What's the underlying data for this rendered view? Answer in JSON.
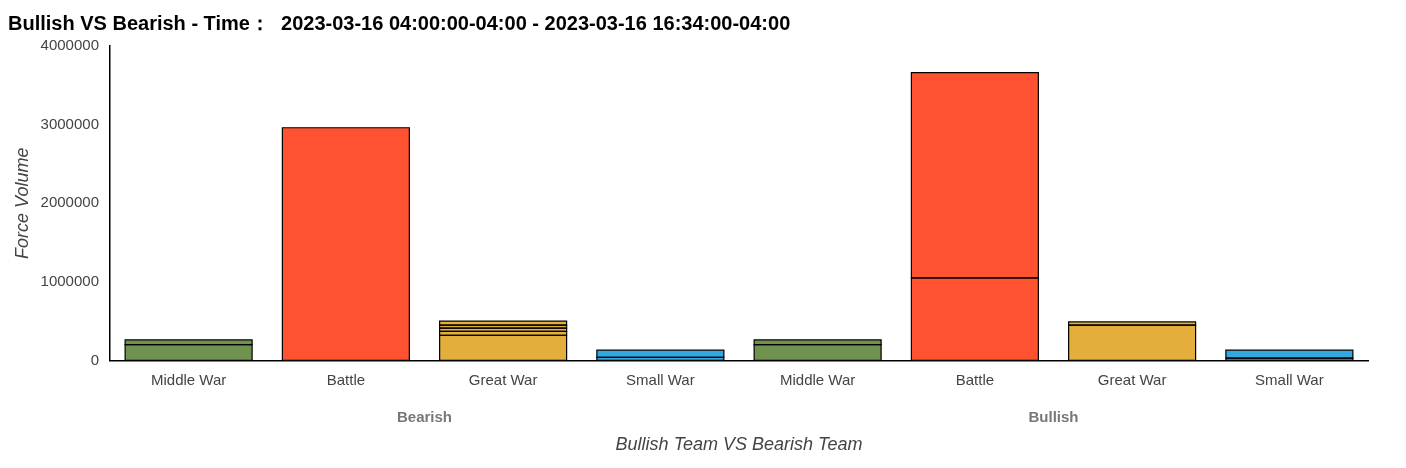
{
  "chart_data": {
    "type": "bar",
    "stacked": true,
    "title": "Bullish VS Bearish - Time：  2023-03-16 04:00:00-04:00 - 2023-03-16 16:34:00-04:00",
    "xlabel": "Bullish Team VS Bearish Team",
    "ylabel": "Force Volume",
    "categories": [
      "Middle War",
      "Battle",
      "Great War",
      "Small War",
      "Middle War",
      "Battle",
      "Great War",
      "Small War"
    ],
    "annotations": [
      "Bearish",
      "Bullish"
    ],
    "series": [
      {
        "colors": [
          "#6f934f",
          "#fe5230",
          "#e3ae3b",
          "#31a8e0",
          "#6f934f",
          "#fe5230",
          "#e3ae3b",
          "#31a8e0"
        ],
        "values": [
          200000,
          2960000,
          320000,
          40000,
          200000,
          1050000,
          450000,
          30000
        ]
      },
      {
        "colors": [
          "#6f934f",
          "#fe5230",
          "#e3ae3b",
          "#31a8e0",
          "#6f934f",
          "#fe5230",
          "#e3ae3b",
          "#31a8e0"
        ],
        "values": [
          60000,
          null,
          50000,
          90000,
          60000,
          2610000,
          40000,
          100000
        ]
      },
      {
        "colors": [
          "#6f934f",
          "#fe5230",
          "#e3ae3b",
          "#31a8e0",
          "#6f934f",
          "#fe5230",
          "#e3ae3b",
          "#31a8e0"
        ],
        "values": [
          null,
          null,
          40000,
          null,
          null,
          null,
          null,
          null
        ]
      },
      {
        "colors": [
          "#6f934f",
          "#fe5230",
          "#e3ae3b",
          "#31a8e0",
          "#6f934f",
          "#fe5230",
          "#e3ae3b",
          "#31a8e0"
        ],
        "values": [
          null,
          null,
          40000,
          null,
          null,
          null,
          null,
          null
        ]
      },
      {
        "colors": [
          "#6f934f",
          "#fe5230",
          "#e3ae3b",
          "#31a8e0",
          "#6f934f",
          "#fe5230",
          "#e3ae3b",
          "#31a8e0"
        ],
        "values": [
          null,
          null,
          50000,
          null,
          null,
          null,
          null,
          null
        ]
      }
    ],
    "ylim": [
      0,
      4000000
    ],
    "yticks": [
      0,
      1000000,
      2000000,
      3000000,
      4000000
    ],
    "grid": false,
    "legend": false
  }
}
